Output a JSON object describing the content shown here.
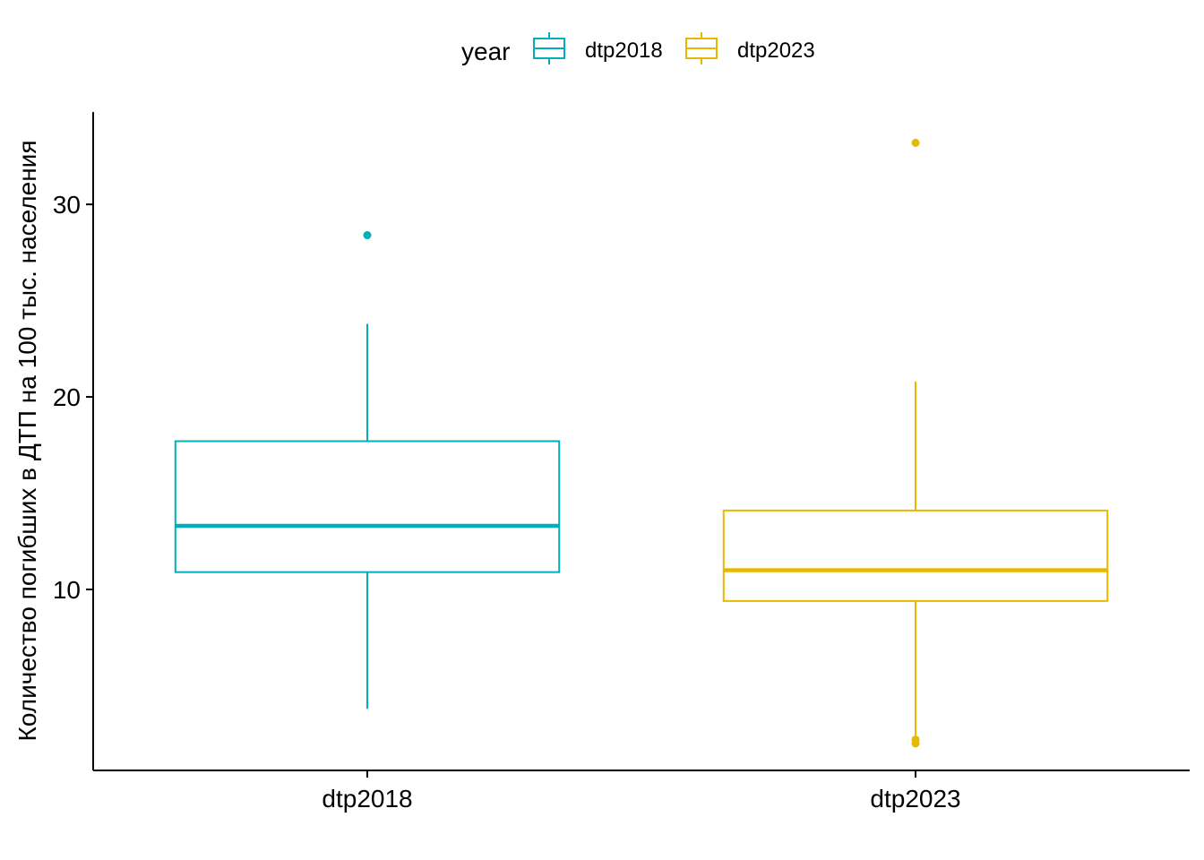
{
  "chart_data": {
    "type": "box",
    "ylabel": "Количество погибших в ДТП на 100 тыс. населения",
    "xlabel": "",
    "ylim": [
      0.6,
      34.8
    ],
    "y_ticks": [
      10,
      20,
      30
    ],
    "grid": false,
    "legend": {
      "title": "year",
      "position": "top",
      "entries": [
        "dtp2018",
        "dtp2023"
      ]
    },
    "categories": [
      "dtp2018",
      "dtp2023"
    ],
    "series": [
      {
        "name": "dtp2018",
        "color": "#00AFBB",
        "whisker_low": 3.8,
        "q1": 10.9,
        "median": 13.3,
        "q3": 17.7,
        "whisker_high": 23.8,
        "outliers": [
          28.4
        ]
      },
      {
        "name": "dtp2023",
        "color": "#E7B800",
        "whisker_low": 2.4,
        "q1": 9.4,
        "median": 11.0,
        "q3": 14.1,
        "whisker_high": 20.8,
        "outliers": [
          33.2,
          2.2,
          2.0
        ]
      }
    ]
  }
}
